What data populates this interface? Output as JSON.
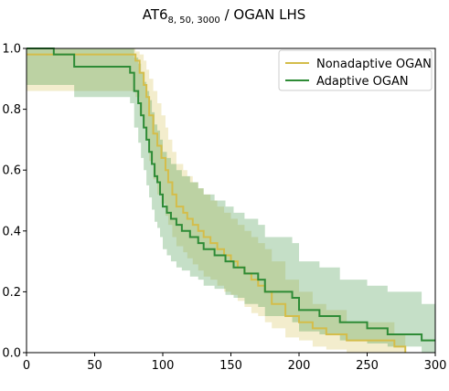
{
  "chart_data": {
    "type": "line",
    "title": {
      "prefix": "AT6",
      "subscript": "8, 50, 3000",
      "suffix": " / OGAN LHS"
    },
    "xlabel": "",
    "ylabel": "",
    "xlim": [
      0,
      300
    ],
    "ylim": [
      0,
      1.0
    ],
    "x_ticks": [
      0,
      50,
      100,
      150,
      200,
      250,
      300
    ],
    "y_ticks": [
      0.0,
      0.2,
      0.4,
      0.6,
      0.8,
      1.0
    ],
    "x_tick_labels": [
      "0",
      "50",
      "100",
      "150",
      "200",
      "250",
      "300"
    ],
    "y_tick_labels": [
      "0.0",
      "0.2",
      "0.4",
      "0.6",
      "0.8",
      "1.0"
    ],
    "grid": false,
    "legend": "top-right",
    "series": [
      {
        "name": "Nonadaptive OGAN",
        "color": "#d4bd4a",
        "x": [
          0,
          3,
          76,
          80,
          83,
          86,
          88,
          90,
          93,
          96,
          99,
          102,
          104,
          107,
          110,
          115,
          118,
          122,
          126,
          130,
          135,
          140,
          145,
          150,
          155,
          160,
          165,
          170,
          175,
          180,
          190,
          200,
          210,
          220,
          235,
          260,
          270,
          278
        ],
        "y": [
          0.98,
          0.98,
          0.98,
          0.96,
          0.92,
          0.88,
          0.84,
          0.78,
          0.72,
          0.68,
          0.64,
          0.6,
          0.56,
          0.52,
          0.48,
          0.46,
          0.44,
          0.42,
          0.4,
          0.38,
          0.36,
          0.34,
          0.32,
          0.3,
          0.28,
          0.26,
          0.24,
          0.22,
          0.2,
          0.16,
          0.12,
          0.1,
          0.08,
          0.06,
          0.04,
          0.04,
          0.02,
          0.0
        ],
        "ci_upper": [
          1.0,
          1.0,
          1.0,
          0.99,
          0.98,
          0.96,
          0.93,
          0.9,
          0.86,
          0.82,
          0.78,
          0.74,
          0.7,
          0.66,
          0.62,
          0.6,
          0.58,
          0.56,
          0.54,
          0.52,
          0.5,
          0.48,
          0.46,
          0.44,
          0.42,
          0.4,
          0.38,
          0.36,
          0.34,
          0.3,
          0.24,
          0.2,
          0.16,
          0.14,
          0.1,
          0.1,
          0.06,
          0.04
        ],
        "ci_lower": [
          0.86,
          0.86,
          0.86,
          0.84,
          0.78,
          0.74,
          0.7,
          0.63,
          0.57,
          0.52,
          0.49,
          0.45,
          0.42,
          0.38,
          0.35,
          0.33,
          0.31,
          0.29,
          0.27,
          0.25,
          0.24,
          0.22,
          0.2,
          0.19,
          0.17,
          0.15,
          0.13,
          0.12,
          0.1,
          0.08,
          0.05,
          0.04,
          0.02,
          0.01,
          0.0,
          0.0,
          0.0,
          0.0
        ]
      },
      {
        "name": "Adaptive OGAN",
        "color": "#2e8b36",
        "x": [
          0,
          20,
          35,
          76,
          79,
          82,
          84,
          86,
          88,
          90,
          92,
          94,
          96,
          98,
          100,
          103,
          106,
          110,
          114,
          120,
          126,
          130,
          138,
          146,
          152,
          160,
          170,
          175,
          195,
          200,
          215,
          230,
          250,
          265,
          290,
          300
        ],
        "y": [
          1.0,
          0.98,
          0.94,
          0.92,
          0.86,
          0.82,
          0.78,
          0.74,
          0.7,
          0.66,
          0.62,
          0.58,
          0.56,
          0.52,
          0.48,
          0.46,
          0.44,
          0.42,
          0.4,
          0.38,
          0.36,
          0.34,
          0.32,
          0.3,
          0.28,
          0.26,
          0.24,
          0.2,
          0.18,
          0.14,
          0.12,
          0.1,
          0.08,
          0.06,
          0.04,
          0.04
        ],
        "ci_upper": [
          1.0,
          1.0,
          1.0,
          1.0,
          0.97,
          0.95,
          0.92,
          0.89,
          0.86,
          0.83,
          0.79,
          0.75,
          0.73,
          0.7,
          0.66,
          0.64,
          0.62,
          0.6,
          0.58,
          0.56,
          0.54,
          0.52,
          0.5,
          0.48,
          0.46,
          0.44,
          0.42,
          0.38,
          0.36,
          0.3,
          0.28,
          0.24,
          0.22,
          0.2,
          0.16,
          0.12
        ],
        "ci_lower": [
          0.88,
          0.88,
          0.84,
          0.82,
          0.74,
          0.69,
          0.64,
          0.6,
          0.55,
          0.51,
          0.47,
          0.43,
          0.41,
          0.38,
          0.34,
          0.32,
          0.3,
          0.28,
          0.27,
          0.25,
          0.24,
          0.22,
          0.21,
          0.19,
          0.18,
          0.16,
          0.15,
          0.12,
          0.1,
          0.07,
          0.06,
          0.04,
          0.03,
          0.02,
          0.0,
          0.0
        ]
      }
    ]
  }
}
